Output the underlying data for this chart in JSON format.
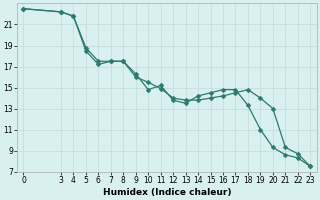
{
  "title": "",
  "xlabel": "Humidex (Indice chaleur)",
  "ylabel": "",
  "background_color": "#d8f0f0",
  "grid_color": "#c8dede",
  "line_color": "#2d7a6b",
  "series1_x": [
    0,
    3,
    4,
    5,
    6,
    7,
    8,
    9,
    10,
    11,
    12,
    13,
    14,
    15,
    16,
    17,
    18,
    19,
    20,
    21,
    22,
    23
  ],
  "series1_y": [
    22.5,
    22.2,
    21.8,
    18.5,
    17.2,
    17.5,
    17.5,
    16.3,
    14.8,
    15.2,
    13.8,
    13.5,
    14.2,
    14.5,
    14.8,
    14.8,
    13.3,
    11.0,
    9.3,
    8.6,
    8.3,
    7.5
  ],
  "series2_x": [
    0,
    3,
    4,
    5,
    6,
    7,
    8,
    9,
    10,
    11,
    12,
    13,
    14,
    15,
    16,
    17,
    18,
    19,
    20,
    21,
    22,
    23
  ],
  "series2_y": [
    22.5,
    22.2,
    21.8,
    18.8,
    17.5,
    17.5,
    17.5,
    16.0,
    15.5,
    14.9,
    14.0,
    13.8,
    13.8,
    14.0,
    14.2,
    14.5,
    14.8,
    14.0,
    13.0,
    9.3,
    8.7,
    7.5
  ],
  "xlim": [
    -0.5,
    23.5
  ],
  "ylim": [
    7,
    23
  ],
  "yticks": [
    7,
    9,
    11,
    13,
    15,
    17,
    19,
    21
  ],
  "xticks": [
    0,
    3,
    4,
    5,
    6,
    7,
    8,
    9,
    10,
    11,
    12,
    13,
    14,
    15,
    16,
    17,
    18,
    19,
    20,
    21,
    22,
    23
  ],
  "xlabel_fontsize": 6.5,
  "tick_fontsize": 5.5,
  "marker_size": 2.5,
  "line_width": 0.9
}
